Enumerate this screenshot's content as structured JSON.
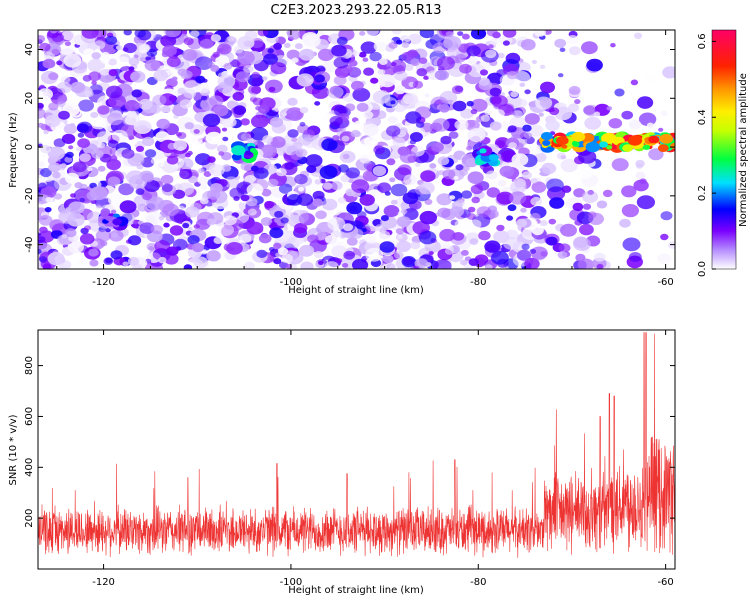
{
  "figure_title": "C2E3.2023.293.22.05.R13",
  "colors": {
    "snr_line": "#ee3333",
    "spectrum_low": "#ffffff",
    "spectrum_high": "#ff0066",
    "axes": "#000000"
  },
  "chart_data": [
    {
      "type": "heatmap",
      "title": "",
      "xlabel": "Height of straight line (km)",
      "ylabel": "Frequency (Hz)",
      "xlim": [
        -127,
        -59
      ],
      "ylim": [
        -50,
        48
      ],
      "x_ticks": [
        -120,
        -100,
        -80,
        -60
      ],
      "y_ticks": [
        -40,
        -20,
        0,
        20,
        40
      ],
      "colorbar": {
        "label": "Normalized spectral amplitude",
        "range": [
          0,
          0.63
        ],
        "ticks": [
          0.0,
          0.2,
          0.4,
          0.6
        ],
        "tick_labels": [
          "0.0",
          "0.2",
          "0.4",
          "0.6"
        ],
        "colormap": [
          "white",
          "purple",
          "blue",
          "cyan",
          "green",
          "yellow",
          "orange",
          "red",
          "magenta"
        ]
      },
      "features": [
        {
          "height_range": [
            -73,
            -59
          ],
          "frequency": 2,
          "amplitude": 0.6
        },
        {
          "height_range": [
            -106,
            -104
          ],
          "frequency": -2,
          "amplitude": 0.3
        },
        {
          "height_range": [
            -80,
            -78
          ],
          "frequency": -4,
          "amplitude": 0.25
        },
        {
          "height_range": [
            -120,
            -118
          ],
          "frequency": -30,
          "amplitude": 0.2
        }
      ],
      "background_amplitude_range": [
        0.0,
        0.15
      ]
    },
    {
      "type": "line",
      "title": "",
      "xlabel": "Height of straight line (km)",
      "ylabel": "SNR (10 * v/v)",
      "xlim": [
        -127,
        -59
      ],
      "ylim": [
        0,
        940
      ],
      "x_ticks": [
        -120,
        -100,
        -80,
        -60
      ],
      "y_ticks": [
        200,
        400,
        600,
        800
      ],
      "series_profile": [
        {
          "height_range": [
            -127,
            -73
          ],
          "mean_snr": 150,
          "noise_amplitude": 90,
          "max_spike": 430
        },
        {
          "height_range": [
            -73,
            -66
          ],
          "mean_snr": 220,
          "noise_amplitude": 150,
          "max_spike": 690
        },
        {
          "height_range": [
            -66,
            -62
          ],
          "mean_snr": 260,
          "noise_amplitude": 180,
          "max_spike": 690
        },
        {
          "height_range": [
            -62,
            -59
          ],
          "mean_snr": 300,
          "noise_amplitude": 220,
          "max_spike": 930
        }
      ],
      "peaks": [
        {
          "x": -62.3,
          "y": 930
        },
        {
          "x": -62.1,
          "y": 930
        },
        {
          "x": -66.0,
          "y": 690
        },
        {
          "x": -65.5,
          "y": 680
        },
        {
          "x": -67.0,
          "y": 600
        },
        {
          "x": -101.5,
          "y": 415
        },
        {
          "x": -94.0,
          "y": 375
        },
        {
          "x": -82.5,
          "y": 430
        },
        {
          "x": -111.0,
          "y": 360
        }
      ]
    }
  ]
}
